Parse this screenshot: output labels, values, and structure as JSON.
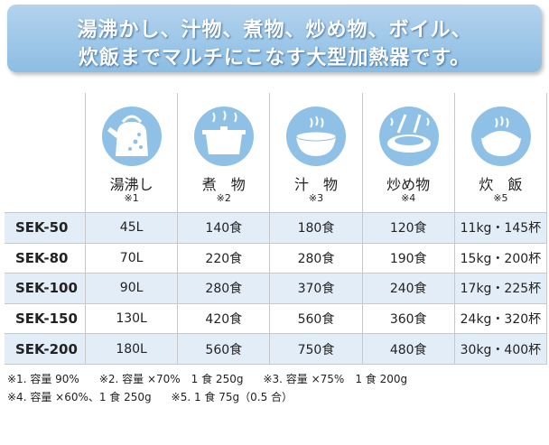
{
  "header": {
    "title": [
      "湯沸かし、汁物、煮物、炒め物、ボイル、",
      "炊飯までマルチにこなす大型加熱器です。"
    ]
  },
  "table": {
    "columns": [
      {
        "label": "湯沸し",
        "note": "※1"
      },
      {
        "label": "煮　物",
        "note": "※2"
      },
      {
        "label": "汁　物",
        "note": "※3"
      },
      {
        "label": "炒め物",
        "note": "※4"
      },
      {
        "label": "炊　飯",
        "note": "※5"
      }
    ],
    "rows": [
      [
        "SEK-50",
        "45L",
        "140食",
        "180食",
        "120食",
        "11kg・145杯"
      ],
      [
        "SEK-80",
        "70L",
        "220食",
        "280食",
        "190食",
        "15kg・200杯"
      ],
      [
        "SEK-100",
        "90L",
        "280食",
        "370食",
        "240食",
        "17kg・225杯"
      ],
      [
        "SEK-150",
        "130L",
        "420食",
        "560食",
        "360食",
        "24kg・320杯"
      ],
      [
        "SEK-200",
        "180L",
        "560食",
        "750食",
        "480食",
        "30kg・400杯"
      ]
    ]
  },
  "footnotes": [
    [
      "※1. 容量 90%",
      "※2. 容量 ×70%　1 食 250g",
      "※3. 容量 ×75%　1 食 200g"
    ],
    [
      "※4. 容量 ×60%、1 食 250g",
      "※5. 1 食 75g（0.5 合）"
    ]
  ]
}
